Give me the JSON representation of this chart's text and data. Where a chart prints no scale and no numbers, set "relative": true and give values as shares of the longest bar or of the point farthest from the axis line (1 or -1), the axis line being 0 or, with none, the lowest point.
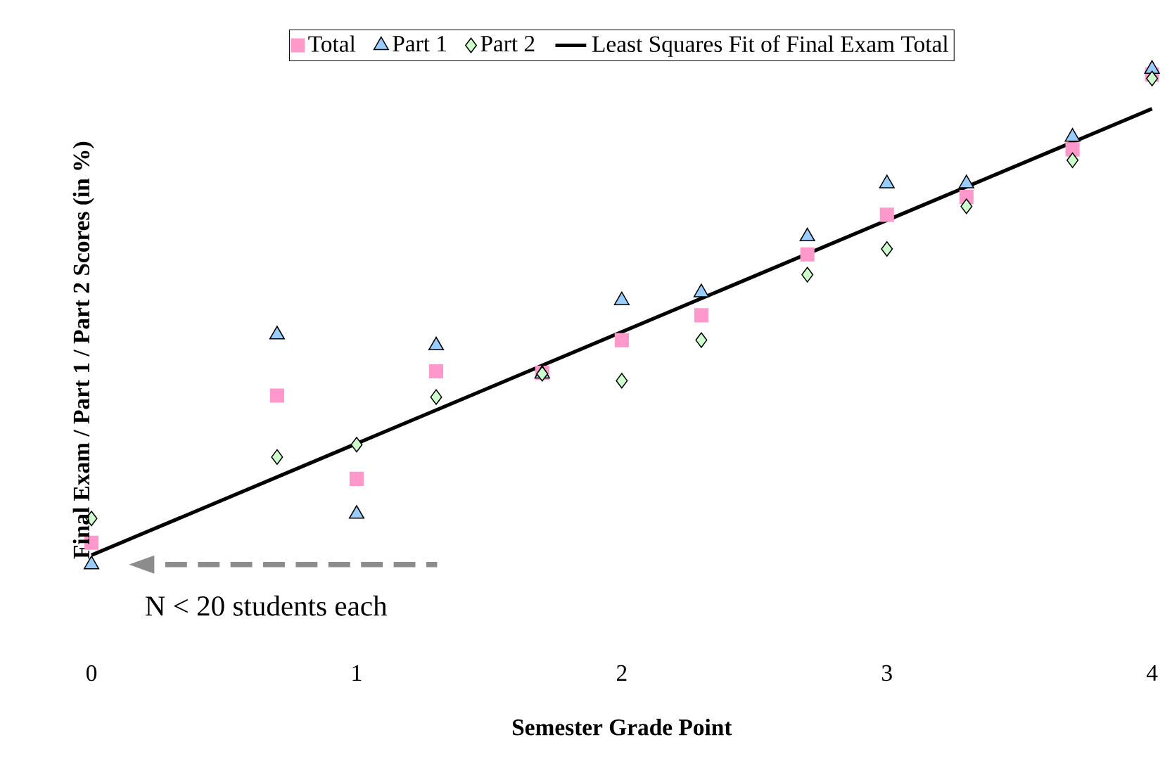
{
  "chart_data": {
    "type": "scatter",
    "xlabel": "Semester Grade Point",
    "ylabel": "Final Exam / Part 1 / Part 2 Scores (in %)",
    "relative": true,
    "xlim": [
      0,
      4
    ],
    "xticks": [
      0,
      1,
      2,
      3,
      4
    ],
    "legend": "top",
    "annotations": [
      "N < 20 students each"
    ],
    "x": [
      0,
      0.7,
      1,
      1.3,
      1.7,
      2,
      2.3,
      2.7,
      3,
      3.3,
      3.7,
      4
    ],
    "series": [
      {
        "name": "Total",
        "color": "#ff99cc",
        "marker": "square",
        "values": [
          0.044,
          0.341,
          0.173,
          0.39,
          0.387,
          0.453,
          0.503,
          0.626,
          0.706,
          0.742,
          0.838,
          0.989
        ]
      },
      {
        "name": "Part 1",
        "color": "#99ccff",
        "marker": "triangle",
        "values": [
          0,
          0.464,
          0.102,
          0.442,
          0.385,
          0.533,
          0.549,
          0.662,
          0.769,
          0.769,
          0.863,
          1
        ]
      },
      {
        "name": "Part 2",
        "color": "#ccffcc",
        "marker": "diamond",
        "values": [
          0.093,
          0.217,
          0.242,
          0.338,
          0.385,
          0.371,
          0.453,
          0.585,
          0.637,
          0.723,
          0.816,
          0.981
        ]
      },
      {
        "name": "Least Squares Fit of Final Exam Total",
        "type": "line",
        "color": "#000000",
        "marker": "none",
        "x": [
          0,
          4
        ],
        "values": [
          0.019,
          0.92
        ]
      }
    ]
  }
}
